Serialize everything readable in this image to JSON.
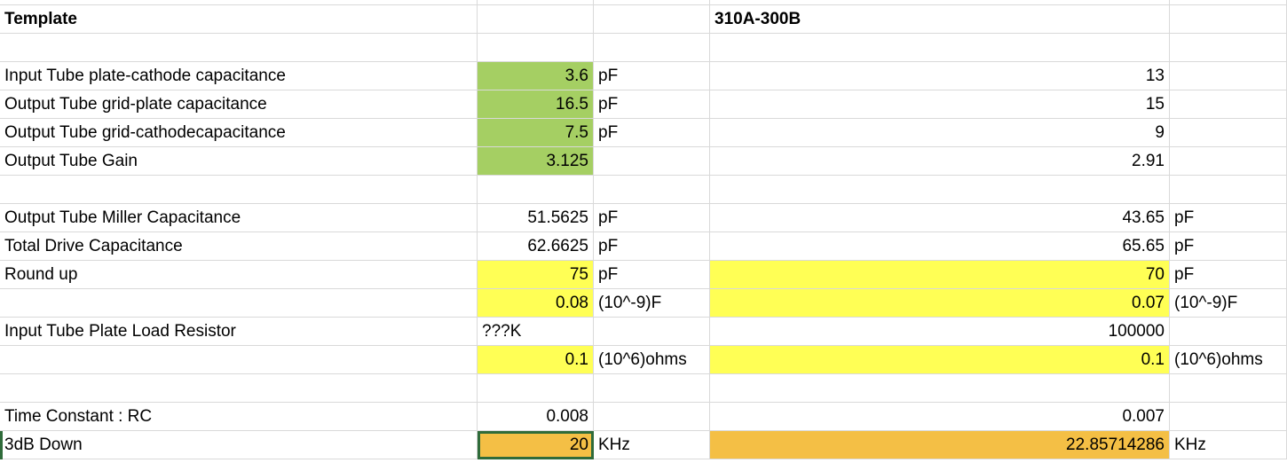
{
  "sheet": {
    "rows": [
      {
        "A": "Template",
        "D": "310A-300B"
      },
      {},
      {
        "A": "Input Tube plate-cathode capacitance",
        "B": 3.6,
        "C": "pF",
        "D": 13
      },
      {
        "A": "Output Tube grid-plate capacitance",
        "B": 16.5,
        "C": "pF",
        "D": 15
      },
      {
        "A": "Output Tube grid-cathodecapacitance",
        "B": 7.5,
        "C": "pF",
        "D": 9
      },
      {
        "A": "Output Tube Gain",
        "B": 3.125,
        "D": 2.91
      },
      {},
      {
        "A": "Output Tube Miller Capacitance",
        "B": 51.5625,
        "C": "pF",
        "D": 43.65,
        "E": "pF"
      },
      {
        "A": "Total Drive Capacitance",
        "B": 62.6625,
        "C": "pF",
        "D": 65.65,
        "E": "pF"
      },
      {
        "A": "Round up",
        "B": 75,
        "C": "pF",
        "D": 70,
        "E": "pF"
      },
      {
        "B": 0.08,
        "C": "(10^-9)F",
        "D": 0.07,
        "E": "(10^-9)F"
      },
      {
        "A": "Input Tube Plate Load Resistor",
        "B": "???K",
        "D": 100000
      },
      {
        "B": 0.1,
        "C": "(10^6)ohms",
        "D": 0.1,
        "E": "(10^6)ohms"
      },
      {},
      {
        "A": "Time Constant : RC",
        "B": 0.008,
        "D": 0.007
      },
      {
        "A": "3dB Down",
        "B": 20,
        "C": "KHz",
        "D": 22.85714286,
        "E": "KHz"
      }
    ]
  }
}
